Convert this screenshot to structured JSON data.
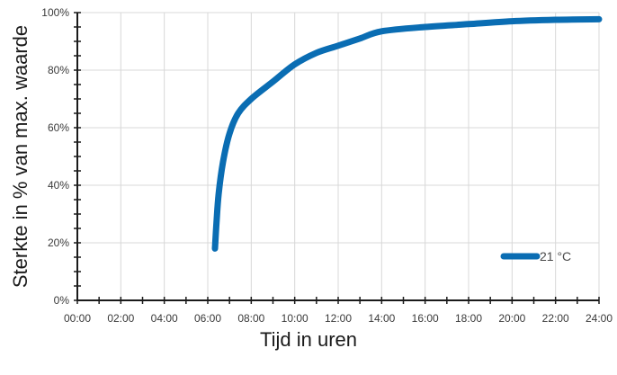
{
  "colors": {
    "series": "#0a6db3",
    "grid": "#d8d8d8",
    "axis": "#1a1a1a",
    "background": "#ffffff"
  },
  "chart_data": {
    "type": "line",
    "title": "",
    "xlabel": "Tijd in uren",
    "ylabel": "Sterkte in % van max. waarde",
    "x_ticks": [
      "00:00",
      "02:00",
      "04:00",
      "06:00",
      "08:00",
      "10:00",
      "12:00",
      "14:00",
      "16:00",
      "18:00",
      "20:00",
      "22:00",
      "24:00"
    ],
    "y_ticks": [
      "0%",
      "20%",
      "40%",
      "60%",
      "80%",
      "100%"
    ],
    "xlim": [
      0,
      24
    ],
    "ylim": [
      0,
      100
    ],
    "grid": true,
    "legend_position": "bottom-right",
    "series": [
      {
        "name": "21 °C",
        "x": [
          6.33,
          6.4,
          6.5,
          6.7,
          7.0,
          7.4,
          8.0,
          9.0,
          10.0,
          11.0,
          12.0,
          13.0,
          14.0,
          16.0,
          18.0,
          20.0,
          22.0,
          24.0
        ],
        "y": [
          18,
          27,
          37,
          48,
          58,
          65,
          70,
          76,
          82,
          86,
          88.5,
          91,
          93.5,
          95,
          96,
          97,
          97.5,
          97.7
        ]
      }
    ]
  }
}
